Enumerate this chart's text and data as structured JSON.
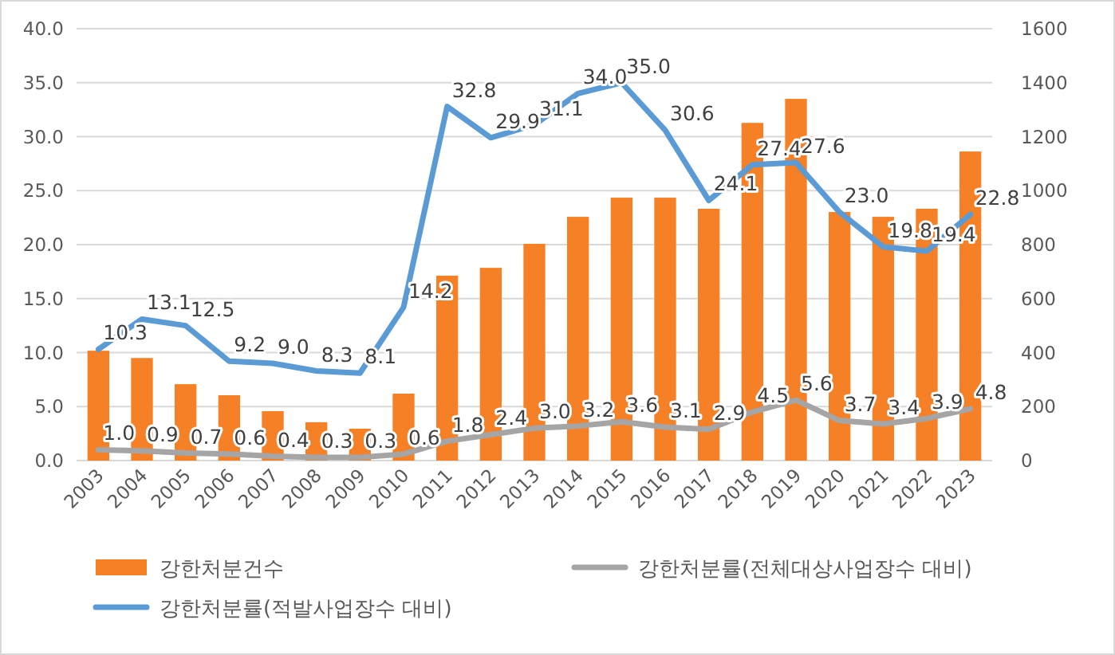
{
  "chart_data": {
    "type": "bar",
    "categories": [
      "2003",
      "2004",
      "2005",
      "2006",
      "2007",
      "2008",
      "2009",
      "2010",
      "2011",
      "2012",
      "2013",
      "2014",
      "2015",
      "2016",
      "2017",
      "2018",
      "2019",
      "2020",
      "2021",
      "2022",
      "2023"
    ],
    "series": [
      {
        "name": "강한처분건수",
        "axis": "y2",
        "color": "#f58025",
        "values": [
          407,
          380,
          283,
          242,
          183,
          142,
          118,
          248,
          685,
          714,
          803,
          903,
          974,
          974,
          933,
          1251,
          1340,
          921,
          903,
          933,
          1145
        ]
      },
      {
        "name": "강한처분률(전체대상사업장수 대비)",
        "type": "line",
        "axis": "y",
        "color": "#a5a5a5",
        "values": [
          1.0,
          0.9,
          0.7,
          0.6,
          0.4,
          0.3,
          0.3,
          0.6,
          1.8,
          2.4,
          3.0,
          3.2,
          3.6,
          3.1,
          2.9,
          4.5,
          5.6,
          3.7,
          3.4,
          3.9,
          4.8
        ],
        "value_labels": [
          "1.0",
          "0.9",
          "0.7",
          "0.6",
          "0.4",
          "0.3",
          "0.3",
          "0.6",
          "1.8",
          "2.4",
          "3.0",
          "3.2",
          "3.6",
          "3.1",
          "2.9",
          "4.5",
          "5.6",
          "3.7",
          "3.4",
          "3.9",
          "4.8"
        ]
      },
      {
        "name": "강한처분률(적발사업장수 대비)",
        "type": "line",
        "axis": "y",
        "color": "#5b9bd5",
        "values": [
          10.3,
          13.1,
          12.5,
          9.2,
          9.0,
          8.3,
          8.1,
          14.2,
          32.8,
          29.9,
          31.1,
          34.0,
          35.0,
          30.6,
          24.1,
          27.4,
          27.6,
          23.0,
          19.8,
          19.4,
          22.8
        ],
        "value_labels": [
          "10.3",
          "13.1",
          "12.5",
          "9.2",
          "9.0",
          "8.3",
          "8.1",
          "14.2",
          "32.8",
          "29.9",
          "31.1",
          "34.0",
          "35.0",
          "30.6",
          "24.1",
          "27.4",
          "27.6",
          "23.0",
          "19.8",
          "19.4",
          "22.8"
        ]
      }
    ],
    "ylim": [
      0,
      40
    ],
    "yticks": [
      {
        "value": 0,
        "label": "0.0"
      },
      {
        "value": 5,
        "label": "5.0"
      },
      {
        "value": 10,
        "label": "10.0"
      },
      {
        "value": 15,
        "label": "15.0"
      },
      {
        "value": 20,
        "label": "20.0"
      },
      {
        "value": 25,
        "label": "25.0"
      },
      {
        "value": 30,
        "label": "30.0"
      },
      {
        "value": 35,
        "label": "35.0"
      },
      {
        "value": 40,
        "label": "40.0"
      }
    ],
    "y2lim": [
      0,
      1600
    ],
    "y2ticks": [
      0,
      200,
      400,
      600,
      800,
      1000,
      1200,
      1400,
      1600
    ],
    "grid": "y",
    "legend": "bottom",
    "marker": "none",
    "line_style": "solid"
  }
}
